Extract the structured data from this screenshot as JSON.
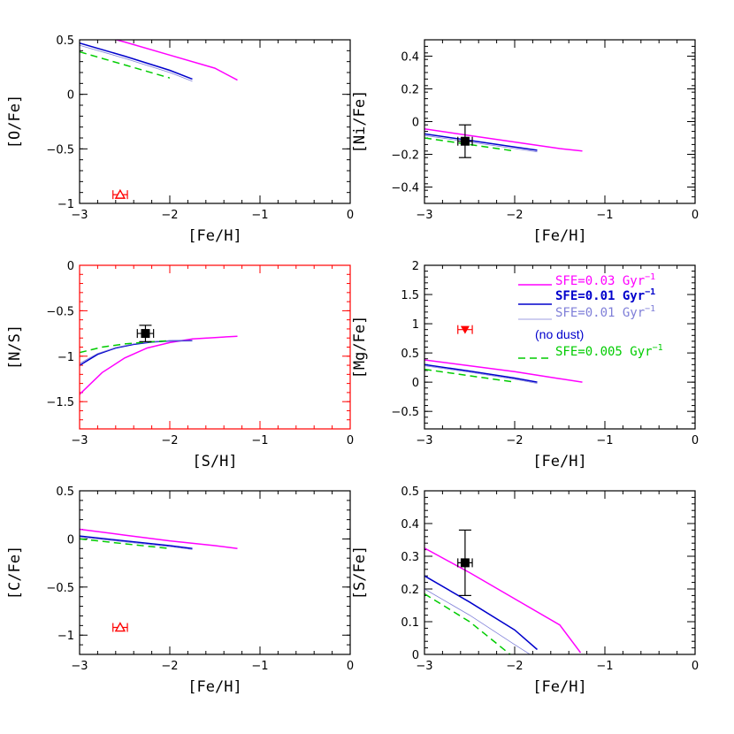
{
  "chart_data": [
    {
      "type": "line",
      "ylabel": "[O/Fe]",
      "xlabel": "[Fe/H]",
      "xlim": [
        -3,
        0
      ],
      "ylim": [
        -1,
        0.5
      ],
      "xticks": [
        -3,
        -2,
        -1,
        0
      ],
      "xtick_labels": [
        "−3",
        "−2",
        "−1",
        "0"
      ],
      "yticks": [
        -1,
        -0.5,
        0,
        0.5
      ],
      "ytick_labels": [
        "−1",
        "−0.5",
        "0",
        "0.5"
      ],
      "frame_color": "#000000",
      "series": [
        {
          "name": "SFE=0.03 Gyr⁻¹",
          "color": "#ff00ff",
          "width": 1.5,
          "dash": "",
          "x": [
            -3.0,
            -2.5,
            -2.0,
            -1.5,
            -1.25
          ],
          "y": [
            0.59,
            0.48,
            0.36,
            0.24,
            0.13
          ]
        },
        {
          "name": "SFE=0.01 Gyr⁻¹",
          "color": "#0000cc",
          "width": 1.5,
          "dash": "",
          "x": [
            -3.0,
            -2.5,
            -2.0,
            -1.75
          ],
          "y": [
            0.47,
            0.35,
            0.22,
            0.14
          ]
        },
        {
          "name": "SFE=0.01 Gyr⁻¹ (no dust)",
          "color": "#7f7fd8",
          "width": 0.8,
          "dash": "",
          "x": [
            -3.0,
            -2.5,
            -2.0,
            -1.75
          ],
          "y": [
            0.45,
            0.33,
            0.2,
            0.12
          ]
        },
        {
          "name": "SFE=0.005 Gyr⁻¹",
          "color": "#00cc00",
          "width": 1.5,
          "dash": "8,5",
          "x": [
            -3.0,
            -2.5,
            -2.0
          ],
          "y": [
            0.39,
            0.27,
            0.15
          ]
        }
      ],
      "points": [
        {
          "x": -2.55,
          "y": -0.92,
          "marker": "triangle-open",
          "color": "#ff0000",
          "xerr": 0.08,
          "yerr": 0.0
        }
      ]
    },
    {
      "type": "line",
      "ylabel": "[Ni/Fe]",
      "xlabel": "[Fe/H]",
      "xlim": [
        -3,
        0
      ],
      "ylim": [
        -0.5,
        0.5
      ],
      "xticks": [
        -3,
        -2,
        -1,
        0
      ],
      "xtick_labels": [
        "−3",
        "−2",
        "−1",
        "0"
      ],
      "yticks": [
        -0.4,
        -0.2,
        0,
        0.2,
        0.4
      ],
      "ytick_labels": [
        "−0.4",
        "−0.2",
        "0",
        "0.2",
        "0.4"
      ],
      "frame_color": "#000000",
      "series": [
        {
          "name": "SFE=0.03 Gyr⁻¹",
          "color": "#ff00ff",
          "width": 1.5,
          "dash": "",
          "x": [
            -3.0,
            -2.5,
            -2.0,
            -1.5,
            -1.25
          ],
          "y": [
            -0.045,
            -0.085,
            -0.125,
            -0.165,
            -0.18
          ]
        },
        {
          "name": "SFE=0.01 Gyr⁻¹",
          "color": "#0000cc",
          "width": 1.5,
          "dash": "",
          "x": [
            -3.0,
            -2.5,
            -2.0,
            -1.75
          ],
          "y": [
            -0.075,
            -0.115,
            -0.155,
            -0.175
          ]
        },
        {
          "name": "SFE=0.01 Gyr⁻¹ (no dust)",
          "color": "#7f7fd8",
          "width": 0.8,
          "dash": "",
          "x": [
            -3.0,
            -2.5,
            -2.0,
            -1.75
          ],
          "y": [
            -0.085,
            -0.125,
            -0.165,
            -0.185
          ]
        },
        {
          "name": "SFE=0.005 Gyr⁻¹",
          "color": "#00cc00",
          "width": 1.5,
          "dash": "8,5",
          "x": [
            -3.0,
            -2.5,
            -2.0
          ],
          "y": [
            -0.1,
            -0.14,
            -0.18
          ]
        }
      ],
      "points": [
        {
          "x": -2.55,
          "y": -0.12,
          "marker": "square",
          "color": "#000000",
          "xerr": 0.08,
          "yerr": 0.1
        }
      ]
    },
    {
      "type": "line",
      "ylabel": "[N/S]",
      "xlabel": "[S/H]",
      "xlim": [
        -3,
        0
      ],
      "ylim": [
        -1.8,
        0
      ],
      "xticks": [
        -3,
        -2,
        -1,
        0
      ],
      "xtick_labels": [
        "−3",
        "−2",
        "−1",
        "0"
      ],
      "yticks": [
        -1.5,
        -1,
        -0.5,
        0
      ],
      "ytick_labels": [
        "−1.5",
        "−1",
        "−0.5",
        "0"
      ],
      "frame_color": "#ff0000",
      "series": [
        {
          "name": "SFE=0.03 Gyr⁻¹",
          "color": "#ff00ff",
          "width": 1.5,
          "dash": "",
          "x": [
            -3.0,
            -2.75,
            -2.5,
            -2.25,
            -2.0,
            -1.75,
            -1.5,
            -1.25
          ],
          "y": [
            -1.42,
            -1.18,
            -1.02,
            -0.91,
            -0.85,
            -0.81,
            -0.795,
            -0.78
          ]
        },
        {
          "name": "SFE=0.01 Gyr⁻¹",
          "color": "#0000cc",
          "width": 1.5,
          "dash": "",
          "x": [
            -3.0,
            -2.8,
            -2.6,
            -2.4,
            -2.2,
            -2.0,
            -1.75
          ],
          "y": [
            -1.1,
            -0.98,
            -0.91,
            -0.87,
            -0.845,
            -0.832,
            -0.83
          ]
        },
        {
          "name": "SFE=0.01 Gyr⁻¹ (no dust)",
          "color": "#7f7fd8",
          "width": 0.8,
          "dash": "",
          "x": [
            -3.0,
            -2.8,
            -2.6,
            -2.4,
            -2.2,
            -2.0,
            -1.75
          ],
          "y": [
            -1.08,
            -0.97,
            -0.905,
            -0.865,
            -0.842,
            -0.83,
            -0.828
          ]
        },
        {
          "name": "SFE=0.005 Gyr⁻¹",
          "color": "#00cc00",
          "width": 1.5,
          "dash": "8,5",
          "x": [
            -3.0,
            -2.75,
            -2.5,
            -2.25,
            -2.0
          ],
          "y": [
            -0.96,
            -0.9,
            -0.865,
            -0.845,
            -0.83
          ]
        }
      ],
      "points": [
        {
          "x": -2.27,
          "y": -0.75,
          "marker": "square",
          "color": "#000000",
          "xerr": 0.09,
          "yerr": 0.09
        }
      ]
    },
    {
      "type": "line",
      "ylabel": "[Mg/Fe]",
      "xlabel": "[Fe/H]",
      "xlim": [
        -3,
        0
      ],
      "ylim": [
        -0.8,
        2
      ],
      "xticks": [
        -3,
        -2,
        -1,
        0
      ],
      "xtick_labels": [
        "−3",
        "−2",
        "−1",
        "0"
      ],
      "yticks": [
        -0.5,
        0,
        0.5,
        1,
        1.5,
        2
      ],
      "ytick_labels": [
        "−0.5",
        "0",
        "0.5",
        "1",
        "1.5",
        "2"
      ],
      "frame_color": "#000000",
      "series": [
        {
          "name": "SFE=0.03 Gyr⁻¹",
          "color": "#ff00ff",
          "width": 1.5,
          "dash": "",
          "x": [
            -3.0,
            -2.5,
            -2.0,
            -1.5,
            -1.25
          ],
          "y": [
            0.38,
            0.28,
            0.18,
            0.06,
            0.0
          ]
        },
        {
          "name": "SFE=0.01 Gyr⁻¹",
          "color": "#0000cc",
          "width": 1.5,
          "dash": "",
          "x": [
            -3.0,
            -2.5,
            -2.0,
            -1.75
          ],
          "y": [
            0.3,
            0.19,
            0.07,
            0.0
          ]
        },
        {
          "name": "SFE=0.01 Gyr⁻¹ (no dust)",
          "color": "#7f7fd8",
          "width": 0.8,
          "dash": "",
          "x": [
            -3.0,
            -2.5,
            -2.0,
            -1.75
          ],
          "y": [
            0.28,
            0.17,
            0.05,
            -0.02
          ]
        },
        {
          "name": "SFE=0.005 Gyr⁻¹",
          "color": "#00cc00",
          "width": 1.5,
          "dash": "8,5",
          "x": [
            -3.0,
            -2.5,
            -2.0
          ],
          "y": [
            0.22,
            0.11,
            0.0
          ]
        }
      ],
      "points": [
        {
          "x": -2.55,
          "y": 0.9,
          "marker": "triangle-down",
          "color": "#ff0000",
          "xerr": 0.08,
          "yerr": 0.0
        }
      ],
      "legend": [
        {
          "label": "SFE=0.03 Gyr",
          "sup": "−1",
          "color": "#ff00ff",
          "bold": false,
          "width": 1.5,
          "dash": "",
          "line_color": "#ff00ff",
          "note": ""
        },
        {
          "label": "SFE=0.01 Gyr",
          "sup": "−1",
          "color": "#0000cc",
          "bold": true,
          "width": 1.5,
          "dash": "",
          "line_color": "#0000cc",
          "note": ""
        },
        {
          "label": "SFE=0.01 Gyr",
          "sup": "−1",
          "color": "#7f7fd8",
          "bold": false,
          "width": 0.8,
          "dash": "",
          "line_color": "#7f7fd8",
          "note": "(no dust)"
        },
        {
          "label": "SFE=0.005 Gyr",
          "sup": "−1",
          "color": "#00cc00",
          "bold": false,
          "width": 1.5,
          "dash": "8,5",
          "line_color": "#00cc00",
          "note": ""
        }
      ]
    },
    {
      "type": "line",
      "ylabel": "[C/Fe]",
      "xlabel": "[Fe/H]",
      "xlim": [
        -3,
        0
      ],
      "ylim": [
        -1.2,
        0.5
      ],
      "xticks": [
        -3,
        -2,
        -1,
        0
      ],
      "xtick_labels": [
        "−3",
        "−2",
        "−1",
        "0"
      ],
      "yticks": [
        -1,
        -0.5,
        0,
        0.5
      ],
      "ytick_labels": [
        "−1",
        "−0.5",
        "0",
        "0.5"
      ],
      "frame_color": "#000000",
      "series": [
        {
          "name": "SFE=0.03 Gyr⁻¹",
          "color": "#ff00ff",
          "width": 1.5,
          "dash": "",
          "x": [
            -3.0,
            -2.5,
            -2.0,
            -1.5,
            -1.25
          ],
          "y": [
            0.1,
            0.04,
            -0.02,
            -0.07,
            -0.1
          ]
        },
        {
          "name": "SFE=0.01 Gyr⁻¹",
          "color": "#0000cc",
          "width": 1.5,
          "dash": "",
          "x": [
            -3.0,
            -2.5,
            -2.0,
            -1.75
          ],
          "y": [
            0.03,
            -0.02,
            -0.07,
            -0.1
          ]
        },
        {
          "name": "SFE=0.01 Gyr⁻¹ (no dust)",
          "color": "#7f7fd8",
          "width": 0.8,
          "dash": "",
          "x": [
            -3.0,
            -2.5,
            -2.0,
            -1.75
          ],
          "y": [
            0.02,
            -0.03,
            -0.08,
            -0.11
          ]
        },
        {
          "name": "SFE=0.005 Gyr⁻¹",
          "color": "#00cc00",
          "width": 1.5,
          "dash": "8,5",
          "x": [
            -3.0,
            -2.5,
            -2.0
          ],
          "y": [
            0.0,
            -0.05,
            -0.1
          ]
        }
      ],
      "points": [
        {
          "x": -2.55,
          "y": -0.92,
          "marker": "triangle-open",
          "color": "#ff0000",
          "xerr": 0.08,
          "yerr": 0.0
        }
      ]
    },
    {
      "type": "line",
      "ylabel": "[S/Fe]",
      "xlabel": "[Fe/H]",
      "xlim": [
        -3,
        0
      ],
      "ylim": [
        0,
        0.5
      ],
      "xticks": [
        -3,
        -2,
        -1,
        0
      ],
      "xtick_labels": [
        "−3",
        "−2",
        "−1",
        "0"
      ],
      "yticks": [
        0,
        0.1,
        0.2,
        0.3,
        0.4,
        0.5
      ],
      "ytick_labels": [
        "0",
        "0.1",
        "0.2",
        "0.3",
        "0.4",
        "0.5"
      ],
      "frame_color": "#000000",
      "series": [
        {
          "name": "SFE=0.03 Gyr⁻¹",
          "color": "#ff00ff",
          "width": 1.5,
          "dash": "",
          "x": [
            -3.0,
            -2.5,
            -2.0,
            -1.5,
            -1.27
          ],
          "y": [
            0.325,
            0.25,
            0.17,
            0.09,
            0.005
          ]
        },
        {
          "name": "SFE=0.01 Gyr⁻¹",
          "color": "#0000cc",
          "width": 1.5,
          "dash": "",
          "x": [
            -3.0,
            -2.5,
            -2.0,
            -1.75
          ],
          "y": [
            0.24,
            0.16,
            0.075,
            0.015
          ]
        },
        {
          "name": "SFE=0.01 Gyr⁻¹ (no dust)",
          "color": "#7f7fd8",
          "width": 0.8,
          "dash": "",
          "x": [
            -3.0,
            -2.5,
            -2.0,
            -1.83
          ],
          "y": [
            0.2,
            0.12,
            0.03,
            0.0
          ]
        },
        {
          "name": "SFE=0.005 Gyr⁻¹",
          "color": "#00cc00",
          "width": 1.5,
          "dash": "8,5",
          "x": [
            -3.0,
            -2.5,
            -2.05
          ],
          "y": [
            0.185,
            0.1,
            0.0
          ]
        }
      ],
      "points": [
        {
          "x": -2.55,
          "y": 0.28,
          "marker": "square",
          "color": "#000000",
          "xerr": 0.08,
          "yerr": 0.1
        }
      ]
    }
  ]
}
